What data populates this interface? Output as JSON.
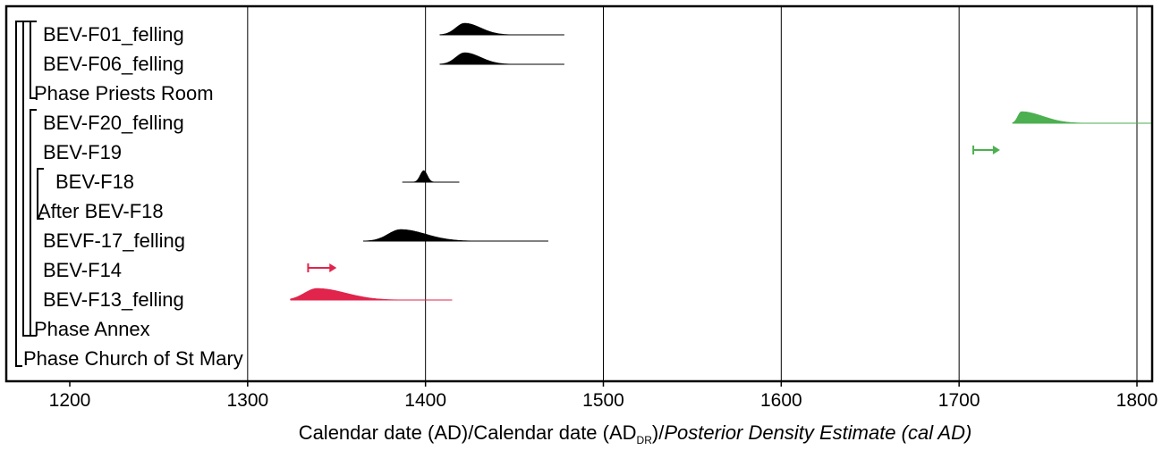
{
  "chart_data": {
    "type": "density-ridge",
    "xlim": [
      1160,
      1810
    ],
    "x_ticks": [
      1200,
      1300,
      1400,
      1500,
      1600,
      1700,
      1800
    ],
    "xlabel": {
      "part1": "Calendar date (AD)/Calendar date (AD",
      "subscript": "DR",
      "part2": ")/",
      "italic": "Posterior Density Estimate (cal AD)"
    },
    "colors": {
      "black": "#000000",
      "red": "#e0244c",
      "green": "#4caf50"
    },
    "rows": [
      {
        "label": "BEV-F01_felling",
        "kind": "density",
        "color": "black",
        "range": [
          1408,
          1478
        ],
        "peak": 1422,
        "spread_left": 5,
        "spread_right": 9
      },
      {
        "label": "BEV-F06_felling",
        "kind": "density",
        "color": "black",
        "range": [
          1408,
          1478
        ],
        "peak": 1422,
        "spread_left": 5,
        "spread_right": 9
      },
      {
        "label": "Phase Priests Room",
        "kind": "bracket"
      },
      {
        "label": "BEV-F20_felling",
        "kind": "density",
        "color": "green",
        "range": [
          1730,
          1808
        ],
        "peak": 1735,
        "spread_left": 2,
        "spread_right": 12
      },
      {
        "label": "BEV-F19",
        "kind": "terminus",
        "color": "green",
        "from": 1708,
        "to": 1723
      },
      {
        "label": "BEV-F18",
        "kind": "density",
        "color": "black",
        "range": [
          1387,
          1419
        ],
        "peak": 1399,
        "spread_left": 2,
        "spread_right": 2
      },
      {
        "label": "After BEV-F18",
        "kind": "bracket"
      },
      {
        "label": "BEVF-17_felling",
        "kind": "density",
        "color": "black",
        "range": [
          1365,
          1469
        ],
        "peak": 1386,
        "spread_left": 7,
        "spread_right": 14
      },
      {
        "label": "BEV-F14",
        "kind": "terminus",
        "color": "red",
        "from": 1334,
        "to": 1350
      },
      {
        "label": "BEV-F13_felling",
        "kind": "density",
        "color": "red",
        "range": [
          1324,
          1415
        ],
        "peak": 1339,
        "spread_left": 7,
        "spread_right": 16
      },
      {
        "label": "Phase Annex",
        "kind": "bracket"
      },
      {
        "label": "Phase Church of St Mary",
        "kind": "bracket"
      }
    ]
  }
}
